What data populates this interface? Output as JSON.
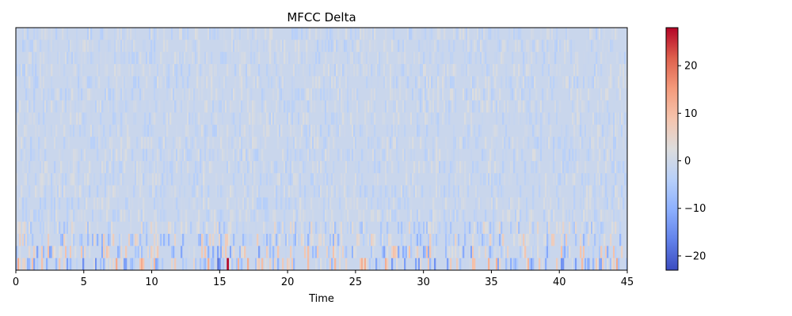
{
  "chart_data": {
    "type": "heatmap",
    "title": "MFCC Delta",
    "xlabel": "Time",
    "ylabel": "",
    "xlim": [
      0,
      45
    ],
    "x_ticks": [
      0,
      5,
      10,
      15,
      20,
      25,
      30,
      35,
      40,
      45
    ],
    "y_ticks": [],
    "n_coefficients": 20,
    "value_range": [
      -23,
      28
    ],
    "background_value": -1,
    "colormap": "coolwarm",
    "colorbar": {
      "ticks": [
        -20,
        -10,
        0,
        10,
        20
      ],
      "tick_labels": [
        "−20",
        "−10",
        "0",
        "10",
        "20"
      ],
      "range": [
        -23,
        28
      ]
    },
    "notable_cells": [
      {
        "time": 14.9,
        "coefficient": 0,
        "value": -19
      },
      {
        "time": 15.0,
        "coefficient": 0,
        "value": -15
      },
      {
        "time": 15.6,
        "coefficient": 0,
        "value": 28
      },
      {
        "time": 15.2,
        "coefficient": 0,
        "value": -4
      },
      {
        "time": 34.9,
        "coefficient": 1,
        "value": -9
      },
      {
        "time": 42.1,
        "coefficient": 0,
        "value": -9
      }
    ]
  }
}
